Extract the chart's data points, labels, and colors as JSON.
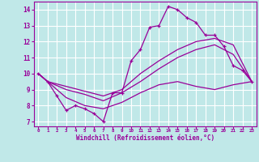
{
  "xlabel": "Windchill (Refroidissement éolien,°C)",
  "background_color": "#c0e8e8",
  "grid_color": "#ffffff",
  "line_color": "#990099",
  "xlim": [
    -0.5,
    23.5
  ],
  "ylim": [
    6.7,
    14.5
  ],
  "xticks": [
    0,
    1,
    2,
    3,
    4,
    5,
    6,
    7,
    8,
    9,
    10,
    11,
    12,
    13,
    14,
    15,
    16,
    17,
    18,
    19,
    20,
    21,
    22,
    23
  ],
  "yticks": [
    7,
    8,
    9,
    10,
    11,
    12,
    13,
    14
  ],
  "series": [
    {
      "x": [
        0,
        1,
        2,
        3,
        4,
        5,
        6,
        7,
        8,
        9,
        10,
        11,
        12,
        13,
        14,
        15,
        16,
        17,
        18,
        19,
        20,
        21,
        22,
        23
      ],
      "y": [
        10.0,
        9.5,
        8.6,
        7.7,
        8.0,
        7.8,
        7.5,
        7.0,
        8.8,
        8.8,
        10.8,
        11.5,
        12.9,
        13.0,
        14.2,
        14.0,
        13.5,
        13.2,
        12.4,
        12.4,
        11.7,
        10.5,
        10.2,
        9.5
      ],
      "has_markers": true
    },
    {
      "x": [
        0,
        1,
        3,
        5,
        7,
        9,
        11,
        13,
        15,
        17,
        19,
        21,
        23
      ],
      "y": [
        10.0,
        9.5,
        9.2,
        8.9,
        8.6,
        9.0,
        10.0,
        10.8,
        11.5,
        12.0,
        12.2,
        11.8,
        9.5
      ],
      "has_markers": false
    },
    {
      "x": [
        0,
        1,
        3,
        5,
        7,
        9,
        11,
        13,
        15,
        17,
        19,
        21,
        23
      ],
      "y": [
        10.0,
        9.5,
        9.0,
        8.7,
        8.3,
        8.8,
        9.5,
        10.3,
        11.0,
        11.5,
        11.8,
        11.2,
        9.5
      ],
      "has_markers": false
    },
    {
      "x": [
        0,
        1,
        3,
        5,
        7,
        9,
        11,
        13,
        15,
        17,
        19,
        21,
        23
      ],
      "y": [
        10.0,
        9.5,
        8.5,
        8.0,
        7.8,
        8.2,
        8.8,
        9.3,
        9.5,
        9.2,
        9.0,
        9.3,
        9.5
      ],
      "has_markers": false
    }
  ]
}
